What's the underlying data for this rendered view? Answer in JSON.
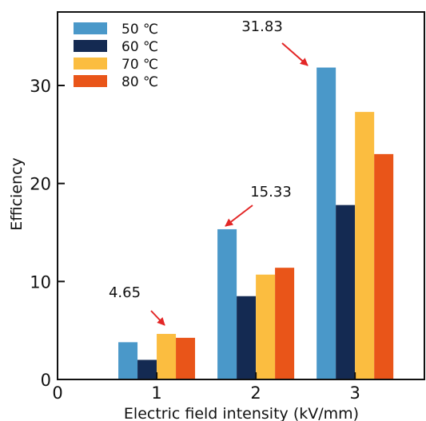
{
  "chart_data": {
    "type": "bar",
    "title": "",
    "xlabel": "Electric field intensity (kV/mm)",
    "ylabel": "Efficiency",
    "categories": [
      "1",
      "2",
      "3"
    ],
    "x_values": [
      1,
      2,
      3
    ],
    "xlim": [
      0,
      3.7
    ],
    "ylim": [
      0,
      37.5
    ],
    "xticks": [
      0,
      1,
      2,
      3
    ],
    "yticks": [
      0,
      10,
      20,
      30
    ],
    "grid": false,
    "legend_position": "top-left",
    "series": [
      {
        "name": "50 ℃",
        "color": "#4a98c9",
        "values": [
          3.8,
          15.33,
          31.83
        ]
      },
      {
        "name": "60 ℃",
        "color": "#142a52",
        "values": [
          2.0,
          8.5,
          17.8
        ]
      },
      {
        "name": "70 ℃",
        "color": "#fbbd40",
        "values": [
          4.65,
          10.7,
          27.3
        ]
      },
      {
        "name": "80 ℃",
        "color": "#e95519",
        "values": [
          4.25,
          11.4,
          23.0
        ]
      }
    ],
    "annotations": [
      {
        "text": "4.65",
        "category_index": 0,
        "series_index": 2,
        "arrow_color": "#e32727"
      },
      {
        "text": "15.33",
        "category_index": 1,
        "series_index": 0,
        "arrow_color": "#e32727"
      },
      {
        "text": "31.83",
        "category_index": 2,
        "series_index": 0,
        "arrow_color": "#e32727"
      }
    ]
  }
}
